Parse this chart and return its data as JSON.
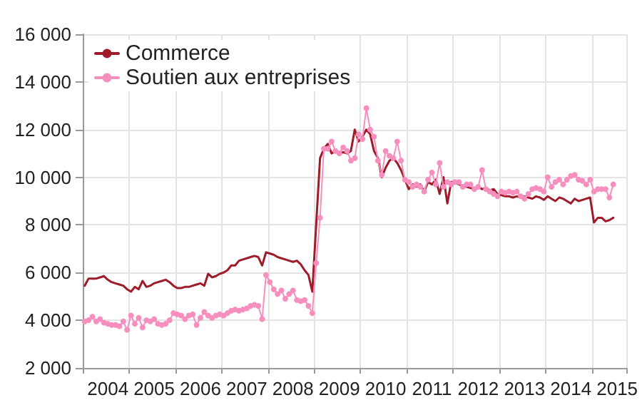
{
  "chart_data": {
    "type": "line",
    "categories": [
      null,
      null,
      null,
      null,
      null,
      null,
      "2004",
      null,
      null,
      null,
      null,
      null,
      null,
      null,
      null,
      null,
      null,
      null,
      "2005",
      null,
      null,
      null,
      null,
      null,
      null,
      null,
      null,
      null,
      null,
      null,
      "2006",
      null,
      null,
      null,
      null,
      null,
      null,
      null,
      null,
      null,
      null,
      null,
      "2007",
      null,
      null,
      null,
      null,
      null,
      null,
      null,
      null,
      null,
      null,
      null,
      "2008",
      null,
      null,
      null,
      null,
      null,
      null,
      null,
      null,
      null,
      null,
      null,
      "2009",
      null,
      null,
      null,
      null,
      null,
      null,
      null,
      null,
      null,
      null,
      null,
      "2010",
      null,
      null,
      null,
      null,
      null,
      null,
      null,
      null,
      null,
      null,
      null,
      "2011",
      null,
      null,
      null,
      null,
      null,
      null,
      null,
      null,
      null,
      null,
      null,
      "2012",
      null,
      null,
      null,
      null,
      null,
      null,
      null,
      null,
      null,
      null,
      null,
      "2013",
      null,
      null,
      null,
      null,
      null,
      null,
      null,
      null,
      null,
      null,
      null,
      "2014",
      null,
      null,
      null,
      null,
      null,
      null,
      null,
      null,
      null,
      null,
      null,
      "2015",
      null,
      null
    ],
    "series": [
      {
        "name": "Commerce",
        "color": "#9e1b2a",
        "marker": "none",
        "values": [
          5450,
          5750,
          5750,
          5750,
          5800,
          5850,
          5700,
          5600,
          5550,
          5500,
          5450,
          5300,
          5200,
          5400,
          5300,
          5650,
          5400,
          5450,
          5550,
          5600,
          5650,
          5700,
          5600,
          5450,
          5350,
          5350,
          5400,
          5400,
          5450,
          5500,
          5550,
          5450,
          5950,
          5800,
          5850,
          5950,
          6000,
          6100,
          6300,
          6300,
          6500,
          6550,
          6600,
          6650,
          6700,
          6650,
          6300,
          6850,
          6800,
          6750,
          6650,
          6600,
          6550,
          6500,
          6450,
          6500,
          6350,
          6100,
          5900,
          5200,
          8000,
          10800,
          11200,
          11400,
          11000,
          11100,
          11000,
          11050,
          11000,
          11100,
          12000,
          11500,
          11700,
          12000,
          11800,
          11100,
          10800,
          10000,
          10400,
          10700,
          10800,
          10600,
          10300,
          9900,
          9500,
          9700,
          9600,
          9700,
          9400,
          9800,
          9700,
          9900,
          9300,
          10000,
          8900,
          9800,
          9800,
          9700,
          9650,
          9600,
          9550,
          9500,
          9600,
          9500,
          9550,
          9450,
          9500,
          9300,
          9250,
          9200,
          9200,
          9150,
          9200,
          9150,
          9200,
          9150,
          9100,
          9200,
          9150,
          9050,
          9200,
          9100,
          9000,
          9150,
          9100,
          9000,
          8900,
          9100,
          9000,
          9050,
          9100,
          9150,
          8100,
          8300,
          8300,
          8150,
          8200,
          8300,
          null,
          null,
          null
        ]
      },
      {
        "name": "Soutien aux entreprises",
        "color": "#f78fbe",
        "marker": "circle",
        "values": [
          3950,
          4000,
          4150,
          3950,
          4050,
          3900,
          3850,
          3800,
          3800,
          3750,
          3950,
          3600,
          4200,
          3850,
          4100,
          3700,
          4000,
          3950,
          4050,
          3850,
          3800,
          3850,
          4000,
          4300,
          4250,
          4200,
          4050,
          4200,
          4250,
          3800,
          4100,
          4350,
          4200,
          4100,
          4200,
          4250,
          4200,
          4300,
          4400,
          4450,
          4400,
          4450,
          4500,
          4600,
          4650,
          4600,
          4050,
          5900,
          5600,
          5300,
          5100,
          5250,
          4900,
          5100,
          5250,
          4850,
          4800,
          4850,
          4600,
          4300,
          6400,
          8300,
          11200,
          11200,
          11500,
          11100,
          11000,
          11250,
          11100,
          10700,
          10800,
          11800,
          11600,
          12900,
          12000,
          11700,
          10700,
          10100,
          11100,
          10900,
          10800,
          11500,
          10700,
          9900,
          9800,
          9600,
          9700,
          9600,
          9400,
          9900,
          10200,
          9700,
          10600,
          9600,
          9800,
          9700,
          9800,
          9800,
          9600,
          9700,
          9700,
          9500,
          9600,
          10300,
          9500,
          9400,
          9300,
          9200,
          9400,
          9350,
          9400,
          9350,
          9400,
          9200,
          9100,
          9300,
          9500,
          9550,
          9500,
          9400,
          10000,
          9600,
          9800,
          9900,
          9700,
          9900,
          10050,
          10100,
          9900,
          9850,
          9700,
          9900,
          9400,
          9500,
          9500,
          9500,
          9150,
          9700,
          null,
          null,
          null
        ]
      }
    ],
    "ylim": [
      2000,
      16000
    ],
    "yticks": [
      {
        "value": 2000,
        "label": "2 000"
      },
      {
        "value": 4000,
        "label": "4 000"
      },
      {
        "value": 6000,
        "label": "6 000"
      },
      {
        "value": 8000,
        "label": "8 000"
      },
      {
        "value": 10000,
        "label": "10 000"
      },
      {
        "value": 12000,
        "label": "12 000"
      },
      {
        "value": 14000,
        "label": "14 000"
      },
      {
        "value": 16000,
        "label": "16 000"
      }
    ],
    "grid": true,
    "legend": "top left",
    "line_style": "solid"
  }
}
